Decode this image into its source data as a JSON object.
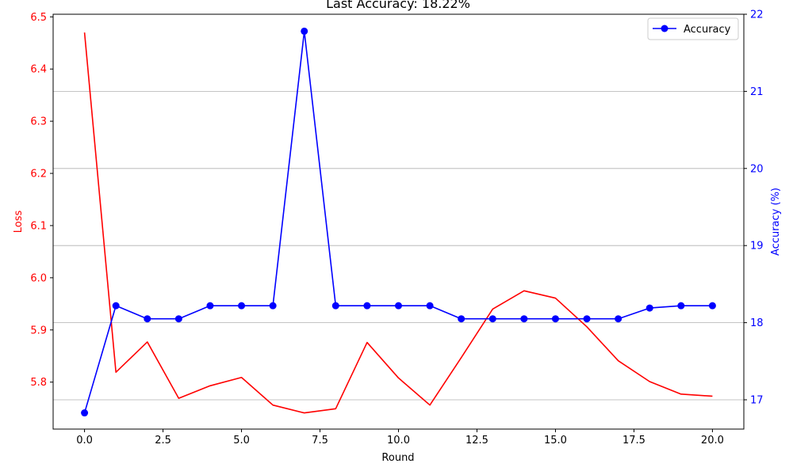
{
  "chart_data": {
    "type": "line",
    "title": "Last Accuracy: 18.22%",
    "xlabel": "Round",
    "ylabel_left": "Loss",
    "ylabel_right": "Accuracy (%)",
    "x": [
      0,
      1,
      2,
      3,
      4,
      5,
      6,
      7,
      8,
      9,
      10,
      11,
      12,
      13,
      14,
      15,
      16,
      17,
      18,
      19,
      20
    ],
    "xlim": [
      -1,
      21
    ],
    "ylim_left": [
      5.71,
      6.505
    ],
    "ylim_right": [
      16.62,
      22.0
    ],
    "x_ticks": [
      "0.0",
      "2.5",
      "5.0",
      "7.5",
      "10.0",
      "12.5",
      "15.0",
      "17.5",
      "20.0"
    ],
    "x_tick_values": [
      0,
      2.5,
      5,
      7.5,
      10,
      12.5,
      15,
      17.5,
      20
    ],
    "left_ticks": [
      "5.8",
      "5.9",
      "6.0",
      "6.1",
      "6.2",
      "6.3",
      "6.4",
      "6.5"
    ],
    "left_tick_values": [
      5.8,
      5.9,
      6.0,
      6.1,
      6.2,
      6.3,
      6.4,
      6.5
    ],
    "right_ticks": [
      "17",
      "18",
      "19",
      "20",
      "21",
      "22"
    ],
    "right_tick_values": [
      17,
      18,
      19,
      20,
      21,
      22
    ],
    "grid": "horizontal-right-axis",
    "legend": "top-right",
    "series": [
      {
        "name": "",
        "axis": "left",
        "color": "#ff0000",
        "marker": "none",
        "values": [
          6.47,
          5.819,
          5.877,
          5.769,
          5.793,
          5.809,
          5.756,
          5.741,
          5.749,
          5.876,
          5.808,
          5.756,
          5.847,
          5.94,
          5.975,
          5.961,
          5.906,
          5.841,
          5.801,
          5.777,
          5.773
        ]
      },
      {
        "name": "Accuracy",
        "axis": "right",
        "color": "#0000ff",
        "marker": "circle",
        "values": [
          16.83,
          18.22,
          18.05,
          18.05,
          18.22,
          18.22,
          18.22,
          21.78,
          18.22,
          18.22,
          18.22,
          18.22,
          18.05,
          18.05,
          18.05,
          18.05,
          18.05,
          18.05,
          18.19,
          18.22,
          18.22
        ]
      }
    ]
  }
}
